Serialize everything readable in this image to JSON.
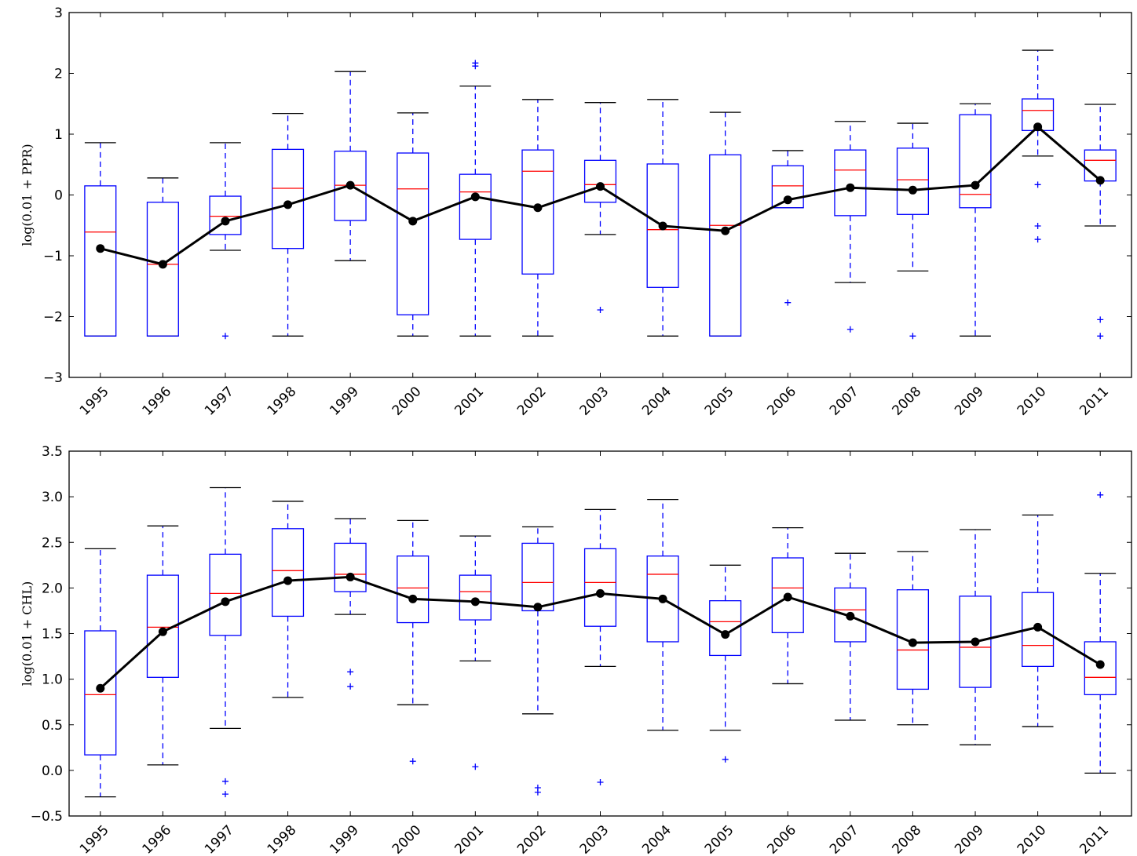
{
  "chart_data": [
    {
      "type": "box",
      "ylabel": "log(0.01 + PPR)",
      "categories": [
        "1995",
        "1996",
        "1997",
        "1998",
        "1999",
        "2000",
        "2001",
        "2002",
        "2003",
        "2004",
        "2005",
        "2006",
        "2007",
        "2008",
        "2009",
        "2010",
        "2011"
      ],
      "whislo": [
        -2.32,
        -2.32,
        -0.91,
        -2.32,
        -1.08,
        -2.32,
        -2.32,
        -2.32,
        -0.65,
        -2.32,
        -2.32,
        -0.21,
        -1.44,
        -1.25,
        -2.32,
        0.64,
        -0.51
      ],
      "q1": [
        -2.32,
        -2.32,
        -0.65,
        -0.88,
        -0.42,
        -1.97,
        -0.73,
        -1.3,
        -0.12,
        -1.52,
        -2.32,
        -0.21,
        -0.34,
        -0.32,
        -0.21,
        1.06,
        0.23
      ],
      "med": [
        -0.61,
        -1.14,
        -0.35,
        0.11,
        0.16,
        0.1,
        0.05,
        0.39,
        0.17,
        -0.57,
        -0.5,
        0.15,
        0.41,
        0.25,
        0.01,
        1.39,
        0.57
      ],
      "q3": [
        0.15,
        -0.12,
        -0.02,
        0.75,
        0.72,
        0.69,
        0.34,
        0.74,
        0.57,
        0.51,
        0.66,
        0.48,
        0.74,
        0.77,
        1.32,
        1.58,
        0.74
      ],
      "whishi": [
        0.86,
        0.28,
        0.86,
        1.34,
        2.03,
        1.35,
        1.79,
        1.57,
        1.52,
        1.57,
        1.36,
        0.73,
        1.21,
        1.18,
        1.5,
        2.38,
        1.49
      ],
      "fliers": [
        [],
        [],
        [
          -2.32
        ],
        [],
        [],
        [],
        [
          2.17,
          2.12
        ],
        [],
        [
          -1.89
        ],
        [],
        [],
        [
          -1.77
        ],
        [
          -2.21
        ],
        [
          -2.32
        ],
        [],
        [
          0.17,
          -0.51,
          -0.73
        ],
        [
          -2.05,
          -2.32
        ]
      ],
      "means": [
        -0.88,
        -1.14,
        -0.43,
        -0.16,
        0.16,
        -0.43,
        -0.03,
        -0.21,
        0.14,
        -0.51,
        -0.59,
        -0.08,
        0.12,
        0.08,
        0.16,
        1.12,
        0.24
      ],
      "ylim": [
        -3,
        3
      ],
      "yticks": [
        {
          "value": -3,
          "label": "−3"
        },
        {
          "value": -2,
          "label": "−2"
        },
        {
          "value": -1,
          "label": "−1"
        },
        0,
        1,
        2,
        3
      ],
      "box_color": "#0000ff",
      "median_color": "#ff0000",
      "mean_color": "#000000"
    },
    {
      "type": "box",
      "ylabel": "log(0.01 + CHL)",
      "categories": [
        "1995",
        "1996",
        "1997",
        "1998",
        "1999",
        "2000",
        "2001",
        "2002",
        "2003",
        "2004",
        "2005",
        "2006",
        "2007",
        "2008",
        "2009",
        "2010",
        "2011"
      ],
      "whislo": [
        -0.29,
        0.06,
        0.46,
        0.8,
        1.71,
        0.72,
        1.2,
        0.62,
        1.14,
        0.44,
        0.44,
        0.95,
        0.55,
        0.5,
        0.28,
        0.48,
        -0.03
      ],
      "q1": [
        0.17,
        1.02,
        1.48,
        1.69,
        1.96,
        1.62,
        1.65,
        1.75,
        1.58,
        1.41,
        1.26,
        1.51,
        1.41,
        0.89,
        0.91,
        1.14,
        0.83
      ],
      "med": [
        0.83,
        1.57,
        1.94,
        2.19,
        2.15,
        2.0,
        1.96,
        2.06,
        2.06,
        2.15,
        1.63,
        2.0,
        1.76,
        1.32,
        1.35,
        1.37,
        1.02
      ],
      "q3": [
        1.53,
        2.14,
        2.37,
        2.65,
        2.49,
        2.35,
        2.14,
        2.49,
        2.43,
        2.35,
        1.86,
        2.33,
        2.0,
        1.98,
        1.91,
        1.95,
        1.41
      ],
      "whishi": [
        2.43,
        2.68,
        3.1,
        2.95,
        2.76,
        2.74,
        2.57,
        2.67,
        2.86,
        2.97,
        2.25,
        2.66,
        2.38,
        2.4,
        2.64,
        2.8,
        2.16
      ],
      "fliers": [
        [],
        [],
        [
          -0.12,
          -0.26
        ],
        [],
        [
          1.08,
          0.92
        ],
        [
          0.1
        ],
        [
          0.04
        ],
        [
          -0.19,
          -0.24
        ],
        [
          -0.13
        ],
        [],
        [
          0.12
        ],
        [],
        [],
        [],
        [],
        [],
        [
          3.02
        ]
      ],
      "means": [
        0.9,
        1.52,
        1.85,
        2.08,
        2.12,
        1.88,
        1.85,
        1.79,
        1.94,
        1.88,
        1.49,
        1.9,
        1.69,
        1.4,
        1.41,
        1.57,
        1.16
      ],
      "ylim": [
        -0.5,
        3.5
      ],
      "yticks": [
        {
          "value": -0.5,
          "label": "−0.5"
        },
        {
          "value": 0,
          "label": "0.0"
        },
        0.5,
        {
          "value": 1,
          "label": "1.0"
        },
        1.5,
        {
          "value": 2,
          "label": "2.0"
        },
        2.5,
        {
          "value": 3,
          "label": "3.0"
        },
        3.5
      ],
      "box_color": "#0000ff",
      "median_color": "#ff0000",
      "mean_color": "#000000"
    }
  ]
}
